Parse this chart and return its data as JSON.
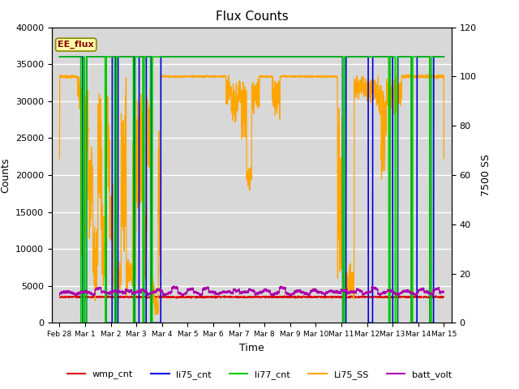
{
  "title": "Flux Counts",
  "xlabel": "Time",
  "ylabel_left": "Counts",
  "ylabel_right": "7500 SS",
  "ylim_left": [
    0,
    40000
  ],
  "ylim_right": [
    0,
    120
  ],
  "bg_color": "#d8d8d8",
  "annotation_text": "EE_flux",
  "annotation_fg": "#880000",
  "annotation_bg": "#ffffaa",
  "legend_items": [
    "wmp_cnt",
    "li75_cnt",
    "li77_cnt",
    "Li75_SS",
    "batt_volt"
  ],
  "line_colors": [
    "#dd0000",
    "#0000dd",
    "#00cc00",
    "#ffa500",
    "#aa00aa"
  ],
  "xtick_labels": [
    "Feb 28",
    "Mar 1",
    "Mar 2",
    "Mar 3",
    "Mar 4",
    "Mar 5",
    "Mar 6",
    "Mar 7",
    "Mar 8",
    "Mar 9",
    "Mar 10",
    "Mar 11",
    "Mar 12",
    "Mar 13",
    "Mar 14",
    "Mar 15"
  ],
  "xtick_positions": [
    0,
    1,
    2,
    3,
    4,
    5,
    6,
    7,
    8,
    9,
    10,
    11,
    12,
    13,
    14,
    15
  ],
  "xlim": [
    -0.3,
    15.3
  ],
  "yticks_left": [
    0,
    5000,
    10000,
    15000,
    20000,
    25000,
    30000,
    35000,
    40000
  ],
  "yticks_right": [
    0,
    20,
    40,
    60,
    80,
    100,
    120
  ],
  "scale_factor": 333.33
}
